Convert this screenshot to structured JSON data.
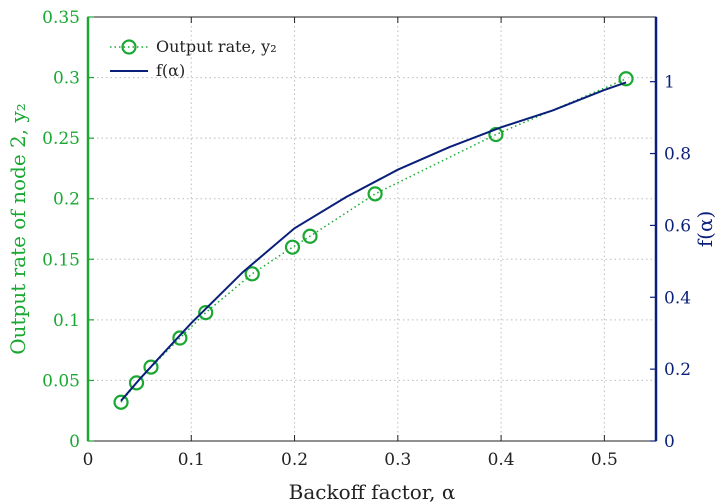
{
  "chart_data": {
    "type": "line",
    "xlabel": "Backoff factor, α",
    "ylabel_left": "Output rate of node 2, y₂",
    "ylabel_right": "f(α)",
    "xlim": [
      0,
      0.55
    ],
    "ylim_left": [
      0,
      0.35
    ],
    "ylim_right": [
      0,
      1.18
    ],
    "x_ticks": [
      0,
      0.1,
      0.2,
      0.3,
      0.4,
      0.5
    ],
    "x_tick_labels": [
      "0",
      "0.1",
      "0.2",
      "0.3",
      "0.4",
      "0.5"
    ],
    "y_left_ticks": [
      0,
      0.05,
      0.1,
      0.15,
      0.2,
      0.25,
      0.3,
      0.35
    ],
    "y_left_tick_labels": [
      "0",
      "0.05",
      "0.1",
      "0.15",
      "0.2",
      "0.25",
      "0.3",
      "0.35"
    ],
    "y_right_ticks": [
      0,
      0.2,
      0.4,
      0.6,
      0.8,
      1.0
    ],
    "y_right_tick_labels": [
      "0",
      "0.2",
      "0.4",
      "0.6",
      "0.8",
      "1"
    ],
    "grid": true,
    "legend_position": "top-left",
    "series": [
      {
        "name": "Output rate, y₂",
        "axis": "left",
        "style": "dotted line with circle markers",
        "color": "#1aa832",
        "x": [
          0.032,
          0.047,
          0.061,
          0.089,
          0.114,
          0.159,
          0.198,
          0.215,
          0.278,
          0.395,
          0.521
        ],
        "y": [
          0.032,
          0.048,
          0.061,
          0.085,
          0.106,
          0.138,
          0.16,
          0.169,
          0.204,
          0.253,
          0.299
        ]
      },
      {
        "name": "f(α)",
        "axis": "right",
        "style": "solid line",
        "color": "#0a1f7a",
        "x": [
          0.032,
          0.05,
          0.07,
          0.1,
          0.15,
          0.2,
          0.25,
          0.3,
          0.35,
          0.4,
          0.45,
          0.5,
          0.521
        ],
        "y": [
          0.112,
          0.172,
          0.235,
          0.328,
          0.47,
          0.592,
          0.679,
          0.755,
          0.818,
          0.873,
          0.92,
          0.977,
          0.998
        ]
      }
    ]
  },
  "colors": {
    "left_axis": "#1aa832",
    "right_axis": "#0a1f7a",
    "grid": "#bdbdbd"
  }
}
